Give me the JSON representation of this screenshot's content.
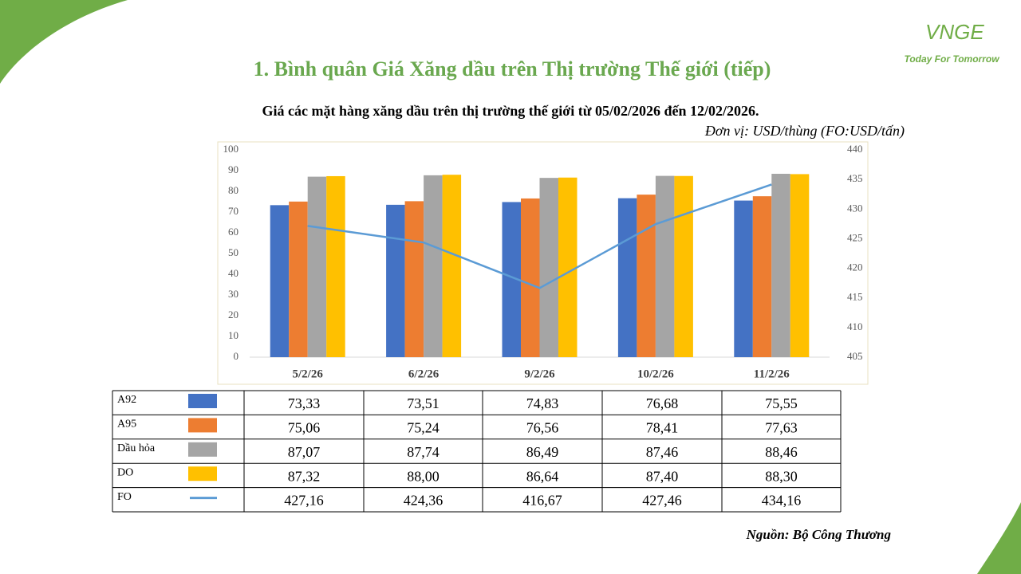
{
  "header": {
    "title": "1. Bình quân Giá Xăng dầu trên Thị trường Thế giới (tiếp)",
    "logo": "VNGE",
    "tagline": "Today For Tomorrow"
  },
  "chart_data": {
    "type": "combo",
    "title": "Giá các mặt hàng xăng dầu trên thị trường thế giới từ 05/02/2026 đến 12/02/2026.",
    "subtitle": "Đơn vị: USD/thùng (FO:USD/tấn)",
    "categories": [
      "5/2/26",
      "6/2/26",
      "9/2/26",
      "10/2/26",
      "11/2/26"
    ],
    "ylim": [
      0,
      100
    ],
    "yticks": [
      0,
      10,
      20,
      30,
      40,
      50,
      60,
      70,
      80,
      90,
      100
    ],
    "y2lim": [
      405,
      440
    ],
    "y2ticks": [
      405,
      410,
      415,
      420,
      425,
      430,
      435,
      440
    ],
    "series": [
      {
        "name": "A92",
        "type": "bar",
        "color": "#4472c4",
        "values": [
          73.33,
          73.51,
          74.83,
          76.68,
          75.55
        ],
        "value_labels": [
          "73,33",
          "73,51",
          "74,83",
          "76,68",
          "75,55"
        ]
      },
      {
        "name": "A95",
        "type": "bar",
        "color": "#ed7d31",
        "values": [
          75.06,
          75.24,
          76.56,
          78.41,
          77.63
        ],
        "value_labels": [
          "75,06",
          "75,24",
          "76,56",
          "78,41",
          "77,63"
        ]
      },
      {
        "name": "Dầu hỏa",
        "type": "bar",
        "color": "#a5a5a5",
        "values": [
          87.07,
          87.74,
          86.49,
          87.46,
          88.46
        ],
        "value_labels": [
          "87,07",
          "87,74",
          "86,49",
          "87,46",
          "88,46"
        ]
      },
      {
        "name": "DO",
        "type": "bar",
        "color": "#ffc000",
        "values": [
          87.32,
          88.0,
          86.64,
          87.4,
          88.3
        ],
        "value_labels": [
          "87,32",
          "88,00",
          "86,64",
          "87,40",
          "88,30"
        ]
      },
      {
        "name": "FO",
        "type": "line",
        "axis": "y2",
        "color": "#5b9bd5",
        "values": [
          427.16,
          424.36,
          416.67,
          427.46,
          434.16
        ],
        "value_labels": [
          "427,16",
          "424,36",
          "416,67",
          "427,46",
          "434,16"
        ]
      }
    ]
  },
  "footer": {
    "source": "Nguồn: Bộ Công Thương"
  }
}
